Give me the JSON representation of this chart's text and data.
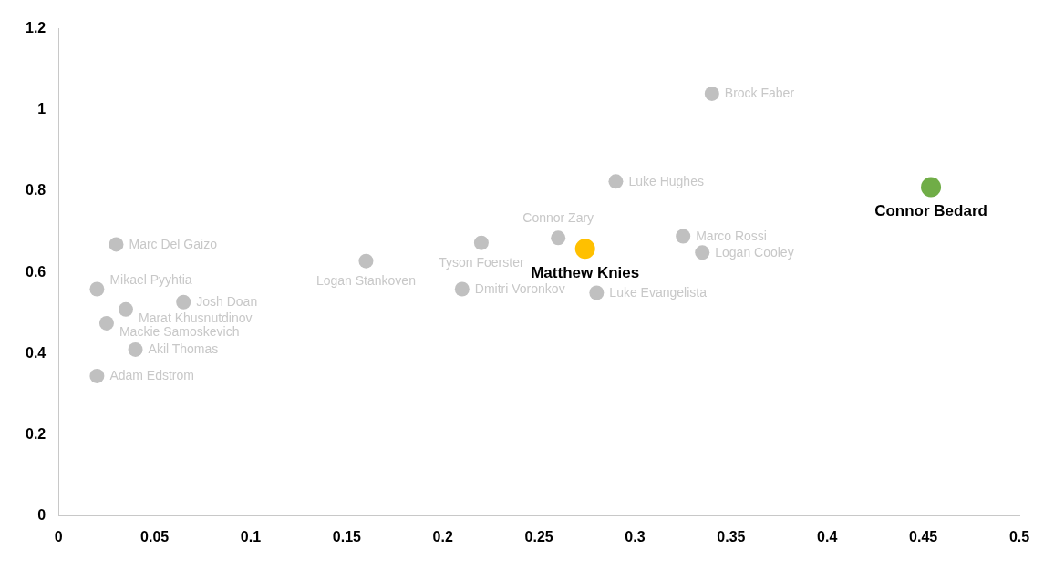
{
  "chart_data": {
    "type": "scatter",
    "xlim": [
      0,
      0.5
    ],
    "xticks": [
      0,
      0.05,
      0.1,
      0.15,
      0.2,
      0.25,
      0.3,
      0.35,
      0.4,
      0.45,
      0.5
    ],
    "ylim": [
      0,
      1.2
    ],
    "yticks": [
      0,
      0.2,
      0.4,
      0.6,
      0.8,
      1,
      1.2
    ],
    "grid": false,
    "legend": false,
    "marker": "circle",
    "series": [
      {
        "name": "Brock Faber",
        "color": "#c0c0c0",
        "x": [
          0.34
        ],
        "values": [
          1.04
        ]
      },
      {
        "name": "Luke Hughes",
        "color": "#c0c0c0",
        "x": [
          0.29
        ],
        "values": [
          0.824
        ]
      },
      {
        "name": "Tyson Foerster",
        "color": "#c0c0c0",
        "x": [
          0.22
        ],
        "values": [
          0.673
        ]
      },
      {
        "name": "Connor Zary",
        "color": "#c0c0c0",
        "x": [
          0.26
        ],
        "values": [
          0.685
        ]
      },
      {
        "name": "Marco Rossi",
        "color": "#c0c0c0",
        "x": [
          0.325
        ],
        "values": [
          0.689
        ]
      },
      {
        "name": "Logan Cooley",
        "color": "#c0c0c0",
        "x": [
          0.335
        ],
        "values": [
          0.649
        ]
      },
      {
        "name": "Marc Del Gaizo",
        "color": "#c0c0c0",
        "x": [
          0.03
        ],
        "values": [
          0.669
        ]
      },
      {
        "name": "Logan Stankoven",
        "color": "#c0c0c0",
        "x": [
          0.16
        ],
        "values": [
          0.628
        ]
      },
      {
        "name": "Dmitri Voronkov",
        "color": "#c0c0c0",
        "x": [
          0.21
        ],
        "values": [
          0.559
        ]
      },
      {
        "name": "Luke Evangelista",
        "color": "#c0c0c0",
        "x": [
          0.28
        ],
        "values": [
          0.55
        ]
      },
      {
        "name": "Mikael Pyyhtia",
        "color": "#c0c0c0",
        "x": [
          0.02
        ],
        "values": [
          0.559
        ]
      },
      {
        "name": "Marat Khusnutdinov",
        "color": "#c0c0c0",
        "x": [
          0.035
        ],
        "values": [
          0.509
        ]
      },
      {
        "name": "Josh Doan",
        "color": "#c0c0c0",
        "x": [
          0.065
        ],
        "values": [
          0.527
        ]
      },
      {
        "name": "Mackie Samoskevich",
        "color": "#c0c0c0",
        "x": [
          0.025
        ],
        "values": [
          0.475
        ]
      },
      {
        "name": "Akil Thomas",
        "color": "#c0c0c0",
        "x": [
          0.04
        ],
        "values": [
          0.41
        ]
      },
      {
        "name": "Adam Edstrom",
        "color": "#c0c0c0",
        "x": [
          0.02
        ],
        "values": [
          0.345
        ]
      },
      {
        "name": "Matthew Knies",
        "color": "#ffc000",
        "x": [
          0.274
        ],
        "values": [
          0.658
        ]
      },
      {
        "name": "Connor Bedard",
        "color": "#70ad47",
        "x": [
          0.454
        ],
        "values": [
          0.81
        ]
      }
    ]
  }
}
